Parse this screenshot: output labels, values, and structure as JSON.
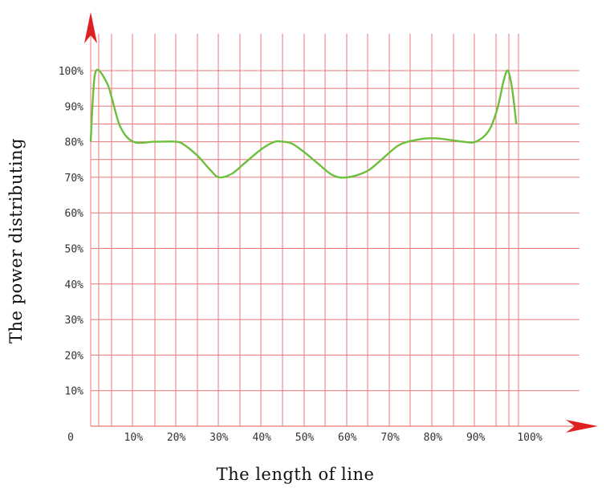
{
  "colors": {
    "grid": "#e87878",
    "axis_arrow": "#e02020",
    "series": "#6cbf3c"
  },
  "chart_data": {
    "type": "line",
    "title": "",
    "xlabel": "The length of line",
    "ylabel": "The power distributing",
    "x_ticks": [
      "0",
      "10%",
      "20%",
      "30%",
      "40%",
      "50%",
      "60%",
      "70%",
      "80%",
      "90%",
      "100%"
    ],
    "y_ticks": [
      "10%",
      "20%",
      "30%",
      "40%",
      "50%",
      "60%",
      "70%",
      "80%",
      "90%",
      "100%"
    ],
    "xlim": [
      0,
      100
    ],
    "ylim": [
      0,
      100
    ],
    "grid": true,
    "series": [
      {
        "x": [
          0,
          0.5,
          1,
          2,
          4,
          5,
          7,
          10,
          15,
          20,
          22,
          25,
          28,
          30,
          33,
          36,
          40,
          43,
          45,
          47,
          50,
          53,
          56,
          58,
          60,
          62,
          65,
          68,
          72,
          76,
          80,
          84,
          87,
          90,
          93,
          95,
          96.5,
          97.5,
          98.5,
          99.5
        ],
        "y": [
          80,
          92,
          99,
          100,
          96,
          92,
          84,
          80,
          80,
          80,
          79,
          76,
          72,
          70,
          71,
          74,
          78,
          80,
          80,
          79.5,
          77,
          74,
          71,
          70,
          70,
          70.5,
          72,
          75,
          79,
          80.5,
          81,
          80.5,
          80,
          80,
          83,
          89,
          97,
          100,
          95,
          85
        ]
      }
    ]
  }
}
